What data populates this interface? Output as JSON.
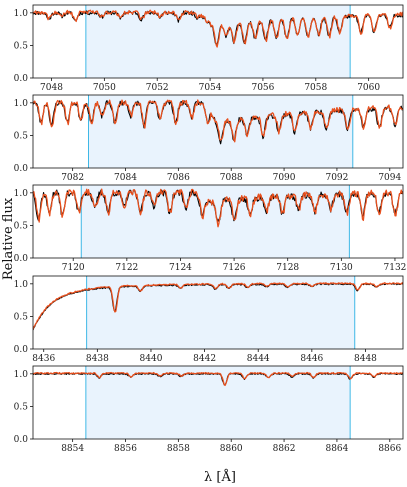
{
  "figure": {
    "ylabel": "Relative flux",
    "xlabel": "λ [Å]"
  },
  "colors": {
    "observed": "#000000",
    "model": "#e8501e",
    "band_fill": "#e9f3fd",
    "band_edge": "#3fb8e6",
    "axes": "#111111"
  },
  "chart_data": [
    {
      "type": "line",
      "xlim": [
        7047.3,
        7061.3
      ],
      "ylim": [
        0.0,
        1.12
      ],
      "xticks": [
        7048,
        7050,
        7052,
        7054,
        7056,
        7058,
        7060
      ],
      "yticks": [
        0.0,
        0.5,
        1.0
      ],
      "ytick_labels": [
        "0.0",
        "0.5",
        "1.0"
      ],
      "band": [
        7049.3,
        7059.3
      ],
      "series": [
        {
          "role": "observed"
        },
        {
          "role": "model"
        }
      ],
      "lines": [
        [
          7047.9,
          0.1
        ],
        [
          7048.4,
          0.05
        ],
        [
          7048.9,
          0.12
        ],
        [
          7049.9,
          0.06
        ],
        [
          7050.6,
          0.08
        ],
        [
          7051.4,
          0.1
        ],
        [
          7052.1,
          0.07
        ],
        [
          7052.8,
          0.12
        ],
        [
          7053.5,
          0.06
        ],
        [
          7054.25,
          0.3
        ],
        [
          7054.6,
          0.18
        ],
        [
          7054.9,
          0.28
        ],
        [
          7055.3,
          0.32
        ],
        [
          7055.7,
          0.26
        ],
        [
          7056.1,
          0.3
        ],
        [
          7056.5,
          0.28
        ],
        [
          7056.9,
          0.3
        ],
        [
          7057.3,
          0.24
        ],
        [
          7057.7,
          0.28
        ],
        [
          7058.1,
          0.26
        ],
        [
          7058.5,
          0.3
        ],
        [
          7058.9,
          0.24
        ],
        [
          7059.7,
          0.26
        ],
        [
          7060.2,
          0.24
        ],
        [
          7060.8,
          0.2
        ]
      ],
      "edge": {
        "start": 7054.1,
        "width": 0.25,
        "depth": 0.2,
        "recover": 4.0
      },
      "noise": 0.03,
      "seed": 11
    },
    {
      "type": "line",
      "xlim": [
        7080.5,
        7094.5
      ],
      "ylim": [
        0.0,
        1.12
      ],
      "xticks": [
        7082,
        7084,
        7086,
        7088,
        7090,
        7092,
        7094
      ],
      "yticks": [
        0.0,
        0.5,
        1.0
      ],
      "ytick_labels": [
        "0.0",
        "0.5",
        "1.0"
      ],
      "band": [
        7082.6,
        7092.6
      ],
      "series": [
        {
          "role": "observed"
        },
        {
          "role": "model"
        }
      ],
      "lines": [
        [
          7080.8,
          0.3
        ],
        [
          7081.2,
          0.35
        ],
        [
          7081.8,
          0.3
        ],
        [
          7082.3,
          0.25
        ],
        [
          7082.7,
          0.3
        ],
        [
          7083.1,
          0.2
        ],
        [
          7083.6,
          0.3
        ],
        [
          7084.2,
          0.2
        ],
        [
          7084.7,
          0.35
        ],
        [
          7085.3,
          0.25
        ],
        [
          7085.9,
          0.3
        ],
        [
          7086.5,
          0.22
        ],
        [
          7087.1,
          0.25
        ],
        [
          7087.6,
          0.3
        ],
        [
          7088.1,
          0.3
        ],
        [
          7088.6,
          0.26
        ],
        [
          7089.2,
          0.3
        ],
        [
          7089.8,
          0.25
        ],
        [
          7090.4,
          0.28
        ],
        [
          7091.0,
          0.24
        ],
        [
          7091.6,
          0.26
        ],
        [
          7092.4,
          0.3
        ],
        [
          7093.0,
          0.28
        ],
        [
          7093.6,
          0.3
        ],
        [
          7094.2,
          0.25
        ]
      ],
      "edge": {
        "start": 7087.5,
        "width": 0.2,
        "depth": 0.3,
        "recover": 5.0
      },
      "noise": 0.04,
      "seed": 23
    },
    {
      "type": "line",
      "xlim": [
        7118.5,
        7132.3
      ],
      "ylim": [
        0.0,
        1.12
      ],
      "xticks": [
        7120,
        7122,
        7124,
        7126,
        7128,
        7130,
        7132
      ],
      "yticks": [
        0.0,
        0.5,
        1.0
      ],
      "ytick_labels": [
        "0.0",
        "0.5",
        "1.0"
      ],
      "band": [
        7120.3,
        7130.3
      ],
      "series": [
        {
          "role": "observed"
        },
        {
          "role": "model"
        }
      ],
      "lines": [
        [
          7118.7,
          0.4
        ],
        [
          7119.1,
          0.3
        ],
        [
          7119.6,
          0.35
        ],
        [
          7120.2,
          0.3
        ],
        [
          7120.8,
          0.25
        ],
        [
          7121.3,
          0.3
        ],
        [
          7121.9,
          0.22
        ],
        [
          7122.5,
          0.3
        ],
        [
          7123.0,
          0.2
        ],
        [
          7123.6,
          0.3
        ],
        [
          7124.2,
          0.24
        ],
        [
          7124.8,
          0.25
        ],
        [
          7125.4,
          0.35
        ],
        [
          7126.0,
          0.3
        ],
        [
          7126.6,
          0.25
        ],
        [
          7127.2,
          0.2
        ],
        [
          7127.8,
          0.25
        ],
        [
          7128.4,
          0.2
        ],
        [
          7129.0,
          0.25
        ],
        [
          7129.6,
          0.22
        ],
        [
          7130.2,
          0.28
        ],
        [
          7130.8,
          0.35
        ],
        [
          7131.4,
          0.3
        ],
        [
          7132.0,
          0.32
        ]
      ],
      "edge": {
        "start": 7125.0,
        "width": 0.2,
        "depth": 0.15,
        "recover": 3.0
      },
      "noise": 0.05,
      "seed": 37
    },
    {
      "type": "line",
      "xlim": [
        8435.6,
        8449.4
      ],
      "ylim": [
        0.0,
        1.12
      ],
      "xticks": [
        8436,
        8438,
        8440,
        8442,
        8444,
        8446,
        8448
      ],
      "yticks": [
        0.0,
        0.5,
        1.0
      ],
      "ytick_labels": [
        "0.0",
        "0.5",
        "1.0"
      ],
      "band": [
        8437.6,
        8447.6
      ],
      "series": [
        {
          "role": "observed"
        },
        {
          "role": "model"
        }
      ],
      "lines": [
        [
          8438.65,
          0.38
        ],
        [
          8439.6,
          0.08
        ],
        [
          8441.1,
          0.05
        ],
        [
          8442.4,
          0.07
        ],
        [
          8442.9,
          0.06
        ],
        [
          8443.6,
          0.05
        ],
        [
          8444.3,
          0.04
        ],
        [
          8445.1,
          0.05
        ],
        [
          8446.0,
          0.04
        ],
        [
          8447.7,
          0.1
        ],
        [
          8448.4,
          0.05
        ]
      ],
      "wing": {
        "center": 8435.0,
        "width": 0.8,
        "depth": 1.1
      },
      "noise": 0.01,
      "seed": 5
    },
    {
      "type": "line",
      "xlim": [
        8852.5,
        8866.5
      ],
      "ylim": [
        0.0,
        1.12
      ],
      "xticks": [
        8854,
        8856,
        8858,
        8860,
        8862,
        8864,
        8866
      ],
      "yticks": [
        0.0,
        0.5,
        1.0
      ],
      "ytick_labels": [
        "0.0",
        "0.5",
        "1.0"
      ],
      "band": [
        8854.5,
        8864.5
      ],
      "series": [
        {
          "role": "observed"
        },
        {
          "role": "model"
        }
      ],
      "lines": [
        [
          8855.0,
          0.06
        ],
        [
          8856.2,
          0.05
        ],
        [
          8857.3,
          0.04
        ],
        [
          8858.1,
          0.04
        ],
        [
          8859.75,
          0.17
        ],
        [
          8860.5,
          0.08
        ],
        [
          8861.4,
          0.06
        ],
        [
          8862.3,
          0.05
        ],
        [
          8863.1,
          0.06
        ],
        [
          8864.5,
          0.08
        ],
        [
          8865.4,
          0.05
        ]
      ],
      "noise": 0.01,
      "seed": 9
    }
  ]
}
